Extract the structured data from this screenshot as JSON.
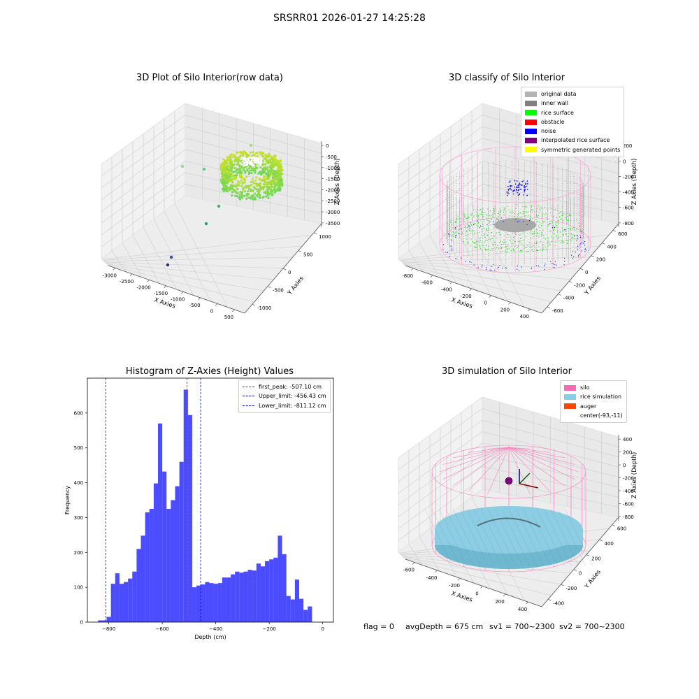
{
  "header": {
    "suptitle": "SRSRR01 2026-01-27 14:25:28"
  },
  "footer": {
    "flag": "flag = 0",
    "avg_depth": "avgDepth = 675 cm",
    "sv1": "sv1 = 700~2300",
    "sv2": "sv2 = 700~2300"
  },
  "chart_data": [
    {
      "type": "scatter",
      "projection": "3d",
      "title": "3D Plot of Silo Interior(row data)",
      "xlabel": "X Axies",
      "ylabel": "Y Axies",
      "zlabel": "Z Axies (Depth)",
      "xticks": [
        "-3000",
        "-2500",
        "-2000",
        "-1500",
        "-1000",
        "-500",
        "0",
        "500"
      ],
      "yticks": [
        "-1000",
        "-500",
        "0",
        "500",
        "1000"
      ],
      "zticks": [
        "0",
        "-500",
        "-1000",
        "-1500",
        "-2000",
        "-2500",
        "-3000",
        "-3500"
      ],
      "colormap": "viridis",
      "outliers": [
        {
          "x": -1050,
          "y": -300,
          "z": -3300
        },
        {
          "x": -1100,
          "y": -350,
          "z": -3400
        },
        {
          "x": -650,
          "y": 300,
          "z": -2200
        },
        {
          "x": -550,
          "y": 400,
          "z": -1700
        },
        {
          "x": -900,
          "y": 600,
          "z": -900
        },
        {
          "x": -700,
          "y": 650,
          "z": -1050
        },
        {
          "x": -100,
          "y": 750,
          "z": -250
        }
      ]
    },
    {
      "type": "scatter",
      "projection": "3d",
      "title": "3D classify of Silo Interior",
      "xlabel": "X Axies",
      "ylabel": "Y Axies",
      "zlabel": "Z Axies (Depth)",
      "xticks": [
        "-800",
        "-600",
        "-400",
        "-200",
        "0",
        "200",
        "400"
      ],
      "yticks": [
        "-600",
        "-400",
        "-200",
        "0",
        "200",
        "400",
        "600"
      ],
      "zticks": [
        "200",
        "0",
        "-200",
        "-400",
        "-600",
        "-800"
      ],
      "legend": [
        {
          "label": "original data",
          "color": "#b3b3b3"
        },
        {
          "label": "inner wall",
          "color": "#808080"
        },
        {
          "label": "rice surface",
          "color": "#00ff00"
        },
        {
          "label": "obstacle",
          "color": "#ff0000"
        },
        {
          "label": "noise",
          "color": "#0000ff"
        },
        {
          "label": "interpolated rice surface",
          "color": "#800080"
        },
        {
          "label": "symmetric generated points",
          "color": "#ffff00"
        }
      ]
    },
    {
      "type": "bar",
      "title": "Histogram of Z-Axies (Height) Values",
      "xlabel": "Depth (cm)",
      "ylabel": "Frequency",
      "xlim": [
        -880,
        40
      ],
      "ylim": [
        0,
        700
      ],
      "xticks": [
        -800,
        -600,
        -400,
        -200,
        0
      ],
      "yticks": [
        0,
        100,
        200,
        300,
        400,
        500,
        600
      ],
      "bin_width": 16,
      "bin_start": -840,
      "values": [
        5,
        5,
        15,
        110,
        140,
        110,
        115,
        125,
        145,
        210,
        248,
        315,
        325,
        398,
        570,
        432,
        325,
        350,
        390,
        460,
        667,
        594,
        100,
        105,
        108,
        115,
        112,
        110,
        112,
        128,
        128,
        137,
        145,
        142,
        145,
        150,
        148,
        168,
        160,
        175,
        180,
        185,
        248,
        195,
        75,
        65,
        122,
        67,
        35,
        45
      ],
      "bar_color": "#0000ff",
      "vlines": [
        {
          "x": -507.1,
          "label": "first_peak: -507.10 cm",
          "color": "#ff0000"
        },
        {
          "x": -456.43,
          "label": "Upper_limit: -456.43 cm",
          "color": "#0000ff"
        },
        {
          "x": -811.12,
          "label": "Lower_limit: -811.12 cm",
          "color": "#0000ff"
        }
      ],
      "legend_position": "top-right"
    },
    {
      "type": "surface",
      "projection": "3d",
      "title": "3D simulation of Silo Interior",
      "xlabel": "X Axies",
      "ylabel": "Y Axies",
      "zlabel": "Z Axies (Depth)",
      "xticks": [
        "-600",
        "-400",
        "-200",
        "0",
        "200",
        "400"
      ],
      "yticks": [
        "-400",
        "-200",
        "0",
        "200",
        "400",
        "600"
      ],
      "zticks": [
        "400",
        "200",
        "0",
        "-200",
        "-400",
        "-600",
        "-800"
      ],
      "legend": [
        {
          "label": "silo",
          "color": "#ff69b4"
        },
        {
          "label": "rice simulation",
          "color": "#87ceeb"
        },
        {
          "label": "auger",
          "color": "#ff4500"
        },
        {
          "label": "center(-93,-11)",
          "color": ""
        }
      ]
    }
  ]
}
